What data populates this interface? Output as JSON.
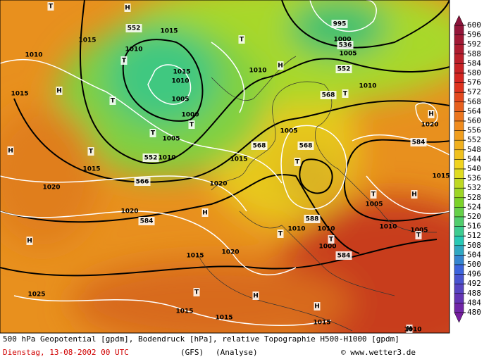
{
  "map_labels": [
    "T",
    "H",
    "552",
    "1015",
    "1010",
    "1015",
    "1010",
    "T",
    "T",
    "995",
    "1000",
    "536",
    "1005",
    "552",
    "H",
    "1010",
    "1015",
    "1010",
    "1015",
    "H",
    "T",
    "1005",
    "1000",
    "T",
    "568",
    "T",
    "1010",
    "H",
    "1020",
    "T",
    "1005",
    "1005",
    "H",
    "552",
    "1010",
    "T",
    "568",
    "568",
    "T",
    "1015",
    "584",
    "1015",
    "566",
    "1015",
    "1020",
    "1020",
    "T",
    "H",
    "1005",
    "1020",
    "H",
    "588",
    "584",
    "1010",
    "1010",
    "1010",
    "1005",
    "T",
    "H",
    "T",
    "T",
    "1000",
    "584",
    "1020",
    "1015",
    "1025",
    "T",
    "H",
    "1015",
    "1015",
    "H",
    "1015",
    "H",
    "1010"
  ],
  "colorbar": {
    "ticks": [
      600,
      596,
      592,
      588,
      584,
      580,
      576,
      572,
      568,
      564,
      560,
      556,
      552,
      548,
      544,
      540,
      536,
      532,
      528,
      524,
      520,
      516,
      512,
      508,
      504,
      500,
      496,
      492,
      488,
      484,
      480
    ]
  },
  "footer": {
    "description": "500 hPa Geopotential [gpdm], Bodendruck [hPa], relative Topographie H500-H1000 [gpdm]",
    "date": "Dienstag, 13-08-2002  00 UTC",
    "model": "(GFS)",
    "run": "(Analyse)",
    "source": "© www.wetter3.de"
  }
}
